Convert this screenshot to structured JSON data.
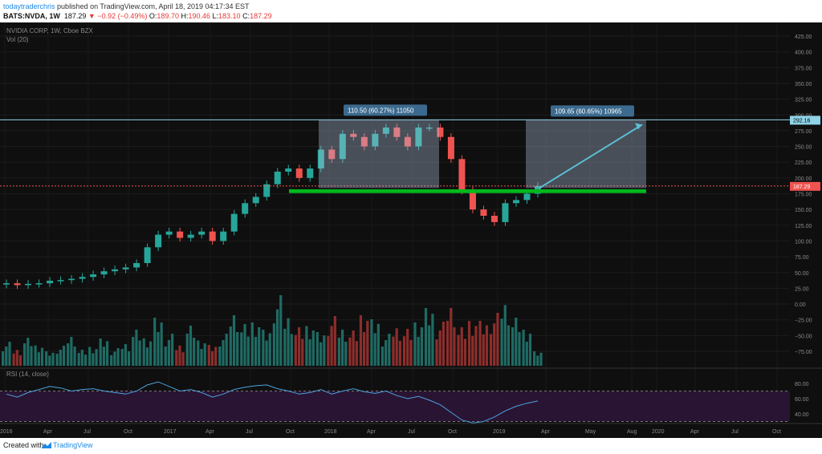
{
  "header": {
    "author": "todaytraderchris",
    "published": "published on TradingView.com, April 18, 2019 04:17:34 EST",
    "symbol": "BATS:NVDA, 1W",
    "price": "187.29",
    "change": "−0.92 (−0.49%)",
    "ohlc": {
      "o": "189.70",
      "h": "190.46",
      "l": "183.10",
      "c": "187.29"
    }
  },
  "legend": {
    "instrument": "NVIDIA CORP, 1W, Cboe BZX",
    "volume": "Vol (20)",
    "rsi": "RSI (14, close)"
  },
  "price_axis": [
    "425.00",
    "400.00",
    "375.00",
    "350.00",
    "325.00",
    "300.00",
    "275.00",
    "250.00",
    "225.00",
    "200.00",
    "175.00",
    "150.00",
    "125.00",
    "100.00",
    "75.00",
    "50.00",
    "25.00",
    "0.00",
    "−25.00",
    "−50.00",
    "−75.00"
  ],
  "rsi_axis": [
    "80.00",
    "60.00",
    "40.00"
  ],
  "time_axis": [
    "2016",
    "Apr",
    "Jul",
    "Oct",
    "2017",
    "Apr",
    "Jul",
    "Oct",
    "2018",
    "Apr",
    "Jul",
    "Oct",
    "2019",
    "Apr",
    "May",
    "Aug",
    "2020",
    "Apr",
    "Jul",
    "Oct"
  ],
  "price_labels": {
    "resistance": "292.16",
    "current": "187.29"
  },
  "measure_boxes": [
    "110.50 (60.27%) 11050",
    "109.65 (60.65%) 10965"
  ],
  "footer": {
    "created_with": "Created with",
    "brand": "TradingView"
  },
  "colors": {
    "background": "#0f0f0f",
    "up": "#26a69a",
    "down": "#ef5350",
    "vol_up": "#1f6b64",
    "vol_down": "#8c2e2c",
    "support": "#00b81c",
    "resistance": "#8fd3e8",
    "arrow": "#5bc0d6",
    "rsi_line": "#4aa3df",
    "rsi_band": "#2a1433",
    "current_price": "#ef5350"
  },
  "chart_data": {
    "type": "candlestick",
    "title": "NVIDIA CORP, 1W, Cboe BZX",
    "x_period_labels": [
      "2016",
      "2017",
      "2018",
      "2019",
      "2020"
    ],
    "closes": [
      33,
      30,
      32,
      33,
      37,
      38,
      40,
      43,
      47,
      52,
      55,
      58,
      65,
      90,
      110,
      115,
      105,
      110,
      115,
      100,
      115,
      143,
      160,
      170,
      190,
      210,
      215,
      200,
      215,
      245,
      230,
      270,
      265,
      250,
      270,
      280,
      265,
      250,
      280,
      280,
      265,
      230,
      180,
      150,
      140,
      130,
      160,
      165,
      175,
      187
    ],
    "ylim": [
      -100,
      440
    ],
    "rsi_ylim": [
      25,
      90
    ],
    "rsi": [
      66,
      62,
      68,
      72,
      76,
      74,
      70,
      72,
      73,
      70,
      68,
      66,
      70,
      78,
      82,
      76,
      70,
      72,
      68,
      62,
      66,
      72,
      75,
      77,
      78,
      73,
      70,
      66,
      68,
      72,
      66,
      70,
      73,
      69,
      67,
      70,
      64,
      60,
      63,
      58,
      52,
      42,
      32,
      28,
      30,
      36,
      44,
      50,
      54,
      57
    ]
  }
}
